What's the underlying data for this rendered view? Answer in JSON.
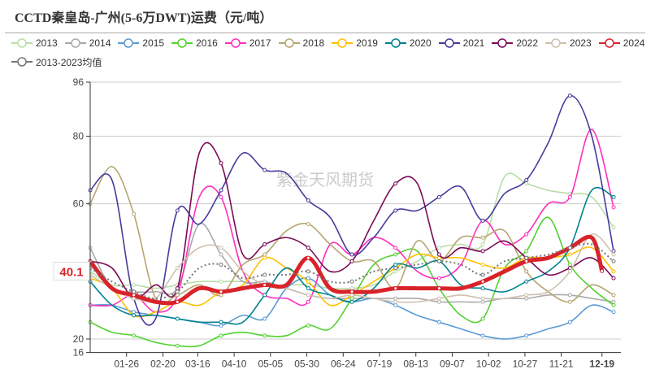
{
  "title": "CCTD秦皇岛-广州(5-6万DWT)运费（元/吨）",
  "chart_data": {
    "type": "line",
    "title": "CCTD秦皇岛-广州(5-6万DWT)运费（元/吨）",
    "xlabel": "",
    "ylabel": "",
    "ylim": [
      16,
      96
    ],
    "yticks": [
      "96",
      "80",
      "60",
      "20",
      "16"
    ],
    "xticks": [
      "01-26",
      "02-20",
      "03-16",
      "04-10",
      "05-05",
      "05-30",
      "06-24",
      "07-19",
      "08-13",
      "09-07",
      "10-02",
      "10-27",
      "11-21",
      "12-19"
    ],
    "highlight_xtick": "12-19",
    "highlight_value": "40.1",
    "grid": true,
    "legend_position": "top",
    "watermark": "紫金天风期货",
    "x": [
      "01-01",
      "01-16",
      "01-31",
      "02-15",
      "03-02",
      "03-17",
      "04-01",
      "04-16",
      "05-01",
      "05-16",
      "05-31",
      "06-15",
      "06-30",
      "07-15",
      "07-30",
      "08-14",
      "08-29",
      "09-13",
      "09-28",
      "10-13",
      "10-28",
      "11-12",
      "11-27",
      "12-12",
      "12-27"
    ],
    "series": [
      {
        "name": "2013",
        "color": "#b9dda6",
        "values": [
          40,
          36,
          36,
          35,
          36,
          37,
          37,
          37,
          36,
          36,
          36,
          35,
          35,
          36,
          40,
          43,
          47,
          48,
          48,
          68,
          66,
          64,
          63,
          62,
          53
        ]
      },
      {
        "name": "2014",
        "color": "#aaaaaa",
        "values": [
          47,
          35,
          34,
          34,
          35,
          54,
          45,
          37,
          37,
          35,
          33,
          32,
          32,
          32,
          32,
          32,
          31,
          31,
          31,
          32,
          32,
          33,
          33,
          32,
          31
        ]
      },
      {
        "name": "2015",
        "color": "#5b9bd5",
        "values": [
          30,
          30,
          28,
          27,
          26,
          25,
          24,
          27,
          26,
          35,
          38,
          33,
          31,
          32,
          30,
          27,
          25,
          23,
          21,
          20,
          21,
          23,
          25,
          30,
          28
        ]
      },
      {
        "name": "2016",
        "color": "#52d12f",
        "values": [
          25,
          22,
          21,
          19,
          18,
          18,
          21,
          22,
          21,
          21,
          24,
          23,
          32,
          42,
          45,
          46,
          35,
          27,
          26,
          41,
          46,
          56,
          42,
          35,
          30
        ]
      },
      {
        "name": "2017",
        "color": "#ff2ebd",
        "values": [
          30,
          30,
          33,
          28,
          33,
          62,
          62,
          40,
          33,
          32,
          31,
          48,
          45,
          50,
          47,
          40,
          38,
          42,
          55,
          48,
          51,
          60,
          62,
          82,
          59
        ]
      },
      {
        "name": "2018",
        "color": "#b5a56f",
        "values": [
          60,
          71,
          57,
          32,
          33,
          36,
          33,
          42,
          45,
          52,
          54,
          48,
          43,
          43,
          35,
          49,
          43,
          50,
          50,
          52,
          40,
          34,
          31,
          36,
          33
        ]
      },
      {
        "name": "2019",
        "color": "#ffc000",
        "values": [
          38,
          35,
          27,
          28,
          31,
          30,
          34,
          36,
          44,
          41,
          37,
          30,
          33,
          37,
          41,
          45,
          44,
          44,
          42,
          41,
          44,
          44,
          45,
          47,
          40
        ]
      },
      {
        "name": "2020",
        "color": "#00838f",
        "values": [
          37,
          30,
          27,
          27,
          26,
          25,
          25,
          25,
          33,
          41,
          35,
          33,
          31,
          35,
          42,
          41,
          43,
          36,
          35,
          34,
          37,
          40,
          47,
          64,
          62
        ]
      },
      {
        "name": "2021",
        "color": "#463b9b",
        "values": [
          64,
          67,
          32,
          26,
          58,
          54,
          64,
          75,
          70,
          69,
          61,
          56,
          45,
          50,
          58,
          58,
          62,
          65,
          55,
          63,
          67,
          78,
          92,
          80,
          46
        ]
      },
      {
        "name": "2022",
        "color": "#7b0a56",
        "values": [
          43,
          41,
          32,
          36,
          35,
          75,
          72,
          45,
          48,
          50,
          47,
          40,
          43,
          55,
          66,
          66,
          45,
          47,
          46,
          49,
          44,
          39,
          41,
          44,
          38
        ]
      },
      {
        "name": "2023",
        "color": "#cfc0ae",
        "values": [
          39,
          35,
          32,
          32,
          41,
          47,
          47,
          40,
          36,
          35,
          33,
          32,
          33,
          32,
          31,
          31,
          32,
          33,
          32,
          32,
          33,
          34,
          40,
          51,
          45
        ]
      },
      {
        "name": "2024",
        "color": "#d9232a",
        "values": [
          43,
          35,
          33,
          31,
          31,
          35,
          34,
          35,
          36,
          36,
          44,
          35,
          34,
          34,
          35,
          35,
          35,
          35,
          37,
          40,
          43,
          44,
          47,
          50,
          null
        ]
      },
      {
        "name": "2013-2023均值",
        "color": "#777777",
        "values": [
          41,
          37,
          34,
          32,
          34,
          41,
          42,
          38,
          39,
          39,
          40,
          37,
          37,
          40,
          41,
          42,
          43,
          42,
          39,
          43,
          44,
          45,
          47,
          48,
          43
        ]
      }
    ]
  }
}
